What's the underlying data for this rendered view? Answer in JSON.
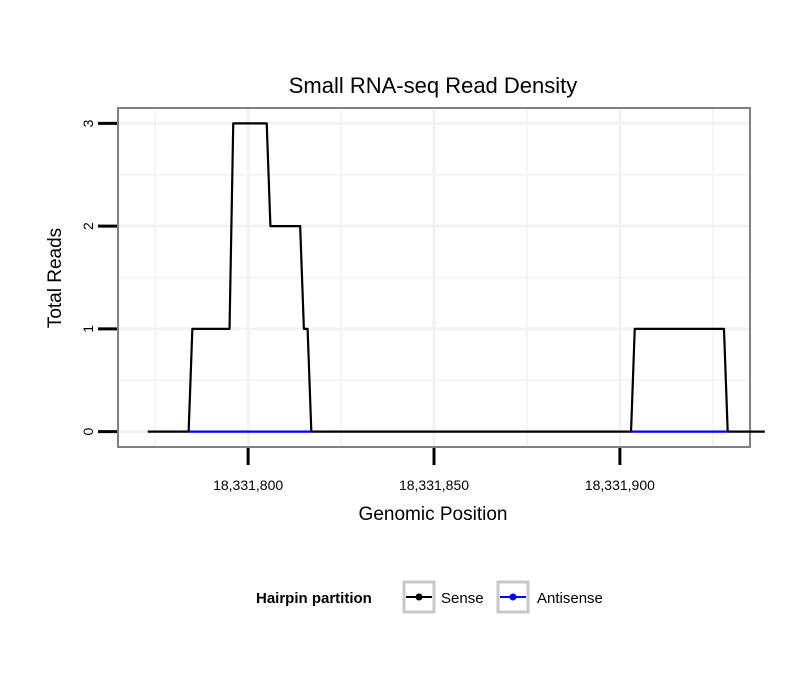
{
  "chart_data": {
    "type": "line",
    "title": "Small RNA-seq Read Density",
    "xlabel": "Genomic Position",
    "ylabel": "Total Reads",
    "xlim": [
      18331765,
      18331935
    ],
    "ylim": [
      -0.15,
      3.15
    ],
    "x_ticks": [
      18331800,
      18331850,
      18331900
    ],
    "x_tick_labels": [
      "18,331,800",
      "18,331,850",
      "18,331,900"
    ],
    "y_ticks": [
      0,
      1,
      2,
      3
    ],
    "y_tick_labels": [
      "0",
      "1",
      "2",
      "3"
    ],
    "grid": true,
    "legend": {
      "title": "Hairpin partition",
      "position": "bottom"
    },
    "series": [
      {
        "name": "Sense",
        "color": "#000000",
        "x": [
          18331773,
          18331784,
          18331785,
          18331795,
          18331796,
          18331805,
          18331806,
          18331814,
          18331815,
          18331816,
          18331817,
          18331903,
          18331904,
          18331928,
          18331929,
          18331939
        ],
        "y": [
          0,
          0,
          1,
          1,
          3,
          3,
          2,
          2,
          1,
          1,
          0,
          0,
          1,
          1,
          0,
          0
        ]
      },
      {
        "name": "Antisense",
        "color": "#0000ff",
        "x": [
          18331784,
          18331817,
          18331903,
          18331929
        ],
        "y": [
          0,
          0,
          0,
          0
        ],
        "segments": [
          [
            0,
            1
          ],
          [
            2,
            3
          ]
        ]
      }
    ]
  }
}
